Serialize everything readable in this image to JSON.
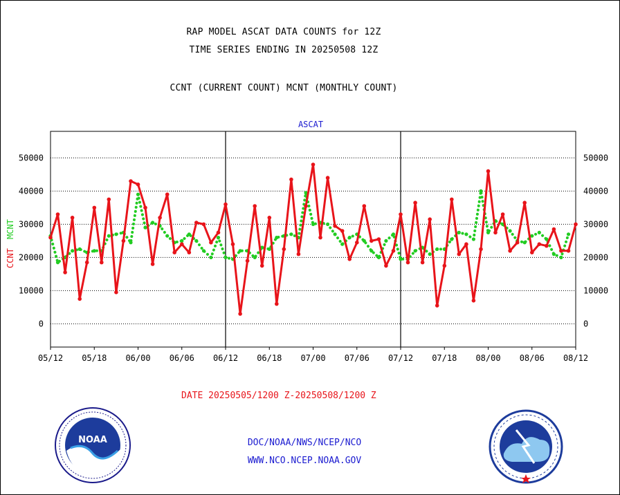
{
  "header": {
    "line1": "RAP MODEL ASCAT DATA COUNTS for 12Z",
    "line2": "TIME SERIES ENDING IN 20250508 12Z",
    "line3": "CCNT (CURRENT COUNT) MCNT (MONTHLY COUNT)"
  },
  "footer": {
    "date_range": "DATE 20250505/1200 Z-20250508/1200 Z",
    "org_path": "DOC/NOAA/NWS/NCEP/NCO",
    "website": "WWW.NCO.NCEP.NOAA.GOV"
  },
  "logos": {
    "left": "NOAA",
    "right": "national-weather-service-logo"
  },
  "chart_data": {
    "type": "line",
    "title": "ASCAT",
    "ylabel_current": "CCNT",
    "ylabel_monthly": "MCNT",
    "ylim": [
      -7000,
      58000
    ],
    "yticks": [
      0,
      10000,
      20000,
      30000,
      40000,
      50000
    ],
    "xtick_labels": [
      "05/12",
      "05/18",
      "06/00",
      "06/06",
      "06/12",
      "06/18",
      "07/00",
      "07/06",
      "07/12",
      "07/18",
      "08/00",
      "08/06",
      "08/12"
    ],
    "grid": "horizontal dotted",
    "colors": {
      "ccnt": "#e8141a",
      "mcnt": "#22cc22",
      "title": "#1a1ad0"
    },
    "series": [
      {
        "name": "CCNT",
        "values": [
          26000,
          33000,
          15500,
          32000,
          7500,
          18500,
          35000,
          18500,
          37500,
          9500,
          25000,
          43000,
          42000,
          35000,
          18000,
          32000,
          39000,
          21500,
          24000,
          21500,
          30500,
          30000,
          24500,
          27500,
          36000,
          24000,
          3000,
          19000,
          35500,
          17500,
          32000,
          6000,
          22500,
          43500,
          21000,
          35500,
          48000,
          26000,
          44000,
          29500,
          28000,
          19500,
          24500,
          35500,
          25000,
          25500,
          17500,
          22000,
          33000,
          18500,
          36500,
          18500,
          31500,
          5500,
          17500,
          37500,
          21000,
          24000,
          7000,
          22500,
          46000,
          27500,
          33000,
          22000,
          24500,
          36500,
          21500,
          24000,
          23500,
          28500,
          22000,
          22000,
          30000
        ],
        "x_start_hour": 0,
        "x_step_hours": 3
      },
      {
        "name": "MCNT",
        "values": [
          26500,
          18500,
          20000,
          22000,
          22500,
          21500,
          22000,
          22000,
          26500,
          27000,
          27500,
          24500,
          39000,
          29000,
          30500,
          29500,
          26500,
          24500,
          25000,
          27000,
          25000,
          22000,
          20000,
          26000,
          20000,
          19500,
          22000,
          22000,
          20000,
          23000,
          22500,
          26000,
          26500,
          27000,
          26000,
          39500,
          30000,
          30500,
          30000,
          27000,
          24000,
          26000,
          27000,
          25000,
          22000,
          20000,
          25000,
          27000,
          19500,
          19500,
          22000,
          23000,
          21000,
          22500,
          22500,
          25500,
          27500,
          27000,
          25500,
          40000,
          27500,
          31000,
          30000,
          28000,
          25000,
          24500,
          26500,
          27500,
          25500,
          21000,
          20000,
          27000
        ],
        "x_start_hour": 0,
        "x_step_hours": 3
      }
    ]
  }
}
